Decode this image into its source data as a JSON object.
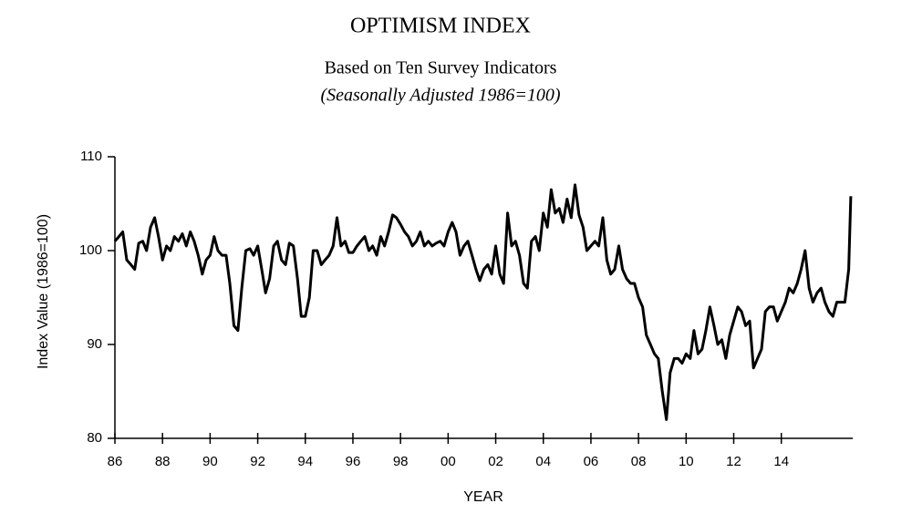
{
  "chart_data": {
    "type": "line",
    "title": "OPTIMISM INDEX",
    "subtitle": "Based on Ten Survey Indicators",
    "note": "(Seasonally Adjusted 1986=100)",
    "x_label": "YEAR",
    "y_label": "Index Value (1986=100)",
    "xlim": [
      1986,
      2017
    ],
    "ylim": [
      80,
      110
    ],
    "yticks": [
      80,
      90,
      100,
      110
    ],
    "xticks": [
      {
        "value": 1986,
        "label": "86"
      },
      {
        "value": 1988,
        "label": "88"
      },
      {
        "value": 1990,
        "label": "90"
      },
      {
        "value": 1992,
        "label": "92"
      },
      {
        "value": 1994,
        "label": "94"
      },
      {
        "value": 1996,
        "label": "96"
      },
      {
        "value": 1998,
        "label": "98"
      },
      {
        "value": 2000,
        "label": "00"
      },
      {
        "value": 2002,
        "label": "02"
      },
      {
        "value": 2004,
        "label": "04"
      },
      {
        "value": 2006,
        "label": "06"
      },
      {
        "value": 2008,
        "label": "08"
      },
      {
        "value": 2010,
        "label": "10"
      },
      {
        "value": 2012,
        "label": "12"
      },
      {
        "value": 2014,
        "label": "14"
      }
    ],
    "x": [
      1986,
      1986.17,
      1986.33,
      1986.5,
      1986.67,
      1986.83,
      1987,
      1987.17,
      1987.33,
      1987.5,
      1987.67,
      1987.83,
      1988,
      1988.17,
      1988.33,
      1988.5,
      1988.67,
      1988.83,
      1989,
      1989.17,
      1989.33,
      1989.5,
      1989.67,
      1989.83,
      1990,
      1990.17,
      1990.33,
      1990.5,
      1990.67,
      1990.83,
      1991,
      1991.17,
      1991.33,
      1991.5,
      1991.67,
      1991.83,
      1992,
      1992.17,
      1992.33,
      1992.5,
      1992.67,
      1992.83,
      1993,
      1993.17,
      1993.33,
      1993.5,
      1993.67,
      1993.83,
      1994,
      1994.17,
      1994.33,
      1994.5,
      1994.67,
      1994.83,
      1995,
      1995.17,
      1995.33,
      1995.5,
      1995.67,
      1995.83,
      1996,
      1996.17,
      1996.33,
      1996.5,
      1996.67,
      1996.83,
      1997,
      1997.17,
      1997.33,
      1997.5,
      1997.67,
      1997.83,
      1998,
      1998.17,
      1998.33,
      1998.5,
      1998.67,
      1998.83,
      1999,
      1999.17,
      1999.33,
      1999.5,
      1999.67,
      1999.83,
      2000,
      2000.17,
      2000.33,
      2000.5,
      2000.67,
      2000.83,
      2001,
      2001.17,
      2001.33,
      2001.5,
      2001.67,
      2001.83,
      2002,
      2002.17,
      2002.33,
      2002.5,
      2002.67,
      2002.83,
      2003,
      2003.17,
      2003.33,
      2003.5,
      2003.67,
      2003.83,
      2004,
      2004.17,
      2004.33,
      2004.5,
      2004.67,
      2004.83,
      2005,
      2005.17,
      2005.33,
      2005.5,
      2005.67,
      2005.83,
      2006,
      2006.17,
      2006.33,
      2006.5,
      2006.67,
      2006.83,
      2007,
      2007.17,
      2007.33,
      2007.5,
      2007.67,
      2007.83,
      2008,
      2008.17,
      2008.33,
      2008.5,
      2008.67,
      2008.83,
      2009,
      2009.17,
      2009.33,
      2009.5,
      2009.67,
      2009.83,
      2010,
      2010.17,
      2010.33,
      2010.5,
      2010.67,
      2010.83,
      2011,
      2011.17,
      2011.33,
      2011.5,
      2011.67,
      2011.83,
      2012,
      2012.17,
      2012.33,
      2012.5,
      2012.67,
      2012.83,
      2013,
      2013.17,
      2013.33,
      2013.5,
      2013.67,
      2013.83,
      2014,
      2014.17,
      2014.33,
      2014.5,
      2014.67,
      2014.83,
      2015,
      2015.17,
      2015.33,
      2015.5,
      2015.67,
      2015.83,
      2016,
      2016.17,
      2016.33,
      2016.5,
      2016.67,
      2016.83,
      2016.92
    ],
    "series": [
      {
        "color": "#000000",
        "values": [
          101,
          101.5,
          102,
          99,
          98.5,
          98,
          100.8,
          101,
          100,
          102.5,
          103.5,
          101.5,
          99,
          100.5,
          100,
          101.5,
          101,
          101.8,
          100.5,
          102,
          101,
          99.5,
          97.5,
          99,
          99.5,
          101.5,
          100,
          99.5,
          99.5,
          96.5,
          92,
          91.5,
          96,
          100,
          100.2,
          99.5,
          100.5,
          98,
          95.5,
          97,
          100.5,
          101,
          99,
          98.5,
          100.8,
          100.5,
          97,
          93,
          93,
          95,
          100,
          100,
          98.5,
          99,
          99.5,
          100.5,
          103.5,
          100.5,
          101,
          99.8,
          99.8,
          100.5,
          101,
          101.5,
          100,
          100.5,
          99.5,
          101.5,
          100.5,
          102,
          103.8,
          103.5,
          102.8,
          102,
          101.5,
          100.5,
          101,
          102,
          100.5,
          101,
          100.5,
          100.8,
          101,
          100.5,
          102,
          103,
          102,
          99.5,
          100.5,
          101,
          99.5,
          98,
          96.8,
          98,
          98.5,
          97.5,
          100.5,
          97.5,
          96.5,
          104,
          100.5,
          101,
          99.5,
          96.5,
          96,
          101,
          101.5,
          100,
          104,
          102.5,
          106.5,
          104,
          104.5,
          103,
          105.5,
          103.5,
          107,
          103.8,
          102.5,
          100,
          100.5,
          101,
          100.5,
          103.5,
          99,
          97.5,
          98,
          100.5,
          98,
          97,
          96.5,
          96.5,
          95,
          94,
          91,
          90,
          89,
          88.5,
          85,
          82,
          87,
          88.5,
          88.5,
          88,
          89,
          88.5,
          91.5,
          89,
          89.5,
          91.5,
          94,
          92,
          90,
          90.5,
          88.5,
          91,
          92.5,
          94,
          93.5,
          92,
          92.5,
          87.5,
          88.5,
          89.5,
          93.5,
          94,
          94,
          92.5,
          93.5,
          94.5,
          96,
          95.5,
          96.5,
          98,
          100,
          96,
          94.5,
          95.5,
          96,
          94.5,
          93.5,
          93,
          94.5,
          94.5,
          94.5,
          98,
          105.8
        ]
      }
    ]
  }
}
